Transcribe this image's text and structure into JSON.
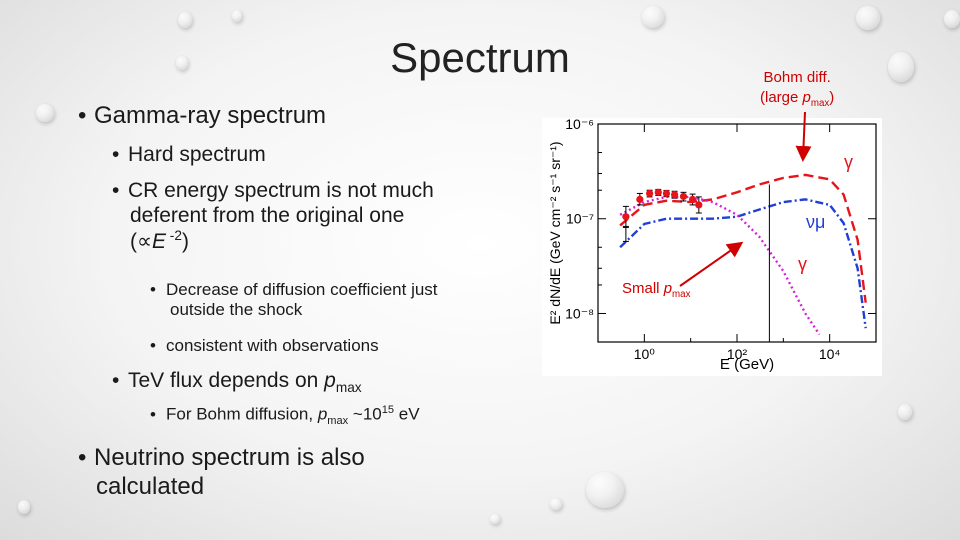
{
  "slide": {
    "title": "Spectrum",
    "bullets": {
      "b1": "Gamma-ray spectrum",
      "b2": "Hard spectrum",
      "b3_line1": "CR energy spectrum is not much",
      "b3_line2": "deferent from the original one",
      "b3_line3_pre": "(∝",
      "b3_line3_E": "E",
      "b3_line3_exp": " -2",
      "b3_line3_post": ")",
      "b4_line1": "Decrease of diffusion coefficient just",
      "b4_line2": "outside the shock",
      "b5": "consistent with observations",
      "b6_pre": "TeV flux depends on ",
      "b6_p": "p",
      "b6_sub": "max",
      "b7_pre": "For Bohm diffusion, ",
      "b7_p": "p",
      "b7_sub": "max",
      "b7_mid": " ~10",
      "b7_exp": "15",
      "b7_post": " eV",
      "b8_line1": "Neutrino spectrum is also",
      "b8_line2": "calculated"
    }
  },
  "annotations": {
    "bohm_line1": "Bohm diff.",
    "bohm_line2_pre": "(large ",
    "bohm_line2_p": "p",
    "bohm_line2_sub": "max",
    "bohm_line2_post": ")",
    "small_pre": "Small ",
    "small_p": "p",
    "small_sub": "max"
  },
  "colors": {
    "red": "#e8141c",
    "blue": "#1f3fd6",
    "magenta": "#d622d6",
    "annotation_red": "#d00000"
  },
  "chart_data": {
    "type": "line",
    "xlabel": "E (GeV)",
    "ylabel": "E² dN/dE (GeV cm⁻² s⁻¹ sr⁻¹)",
    "xscale": "log",
    "yscale": "log",
    "xlim": [
      0.1,
      100000
    ],
    "ylim": [
      5e-09,
      1e-06
    ],
    "x_ticks": [
      "10⁰",
      "10²",
      "10⁴"
    ],
    "y_ticks": [
      "10⁻⁶",
      "10⁻⁷",
      "10⁻⁸"
    ],
    "series_labels": [
      "γ",
      "νμ",
      "γ"
    ],
    "series": [
      {
        "color": "#e8141c",
        "dash": "10,5",
        "x": [
          0.3,
          1,
          3,
          10,
          30,
          100,
          300,
          1000,
          3000,
          10000,
          20000,
          40000,
          60000
        ],
        "y": [
          8.5e-08,
          1.4e-07,
          1.55e-07,
          1.5e-07,
          1.6e-07,
          1.9e-07,
          2.3e-07,
          2.7e-07,
          2.9e-07,
          2.6e-07,
          1.8e-07,
          6e-08,
          1.3e-08
        ]
      },
      {
        "color": "#1f3fd6",
        "dash": "8,3,2,3",
        "x": [
          0.3,
          1,
          3,
          10,
          30,
          100,
          300,
          1000,
          3000,
          10000,
          20000,
          40000,
          60000
        ],
        "y": [
          5e-08,
          8.8e-08,
          1e-07,
          1e-07,
          1e-07,
          1.05e-07,
          1.25e-07,
          1.5e-07,
          1.6e-07,
          1.4e-07,
          9e-08,
          3e-08,
          7e-09
        ]
      },
      {
        "color": "#d622d6",
        "dash": "2,3",
        "x": [
          0.3,
          1,
          3,
          10,
          30,
          100,
          300,
          1000,
          3000,
          6000
        ],
        "y": [
          1.1e-07,
          1.5e-07,
          1.7e-07,
          1.7e-07,
          1.5e-07,
          1.1e-07,
          6.5e-08,
          2.8e-08,
          1e-08,
          6e-09
        ]
      }
    ],
    "points": {
      "x": [
        0.4,
        0.8,
        1.3,
        2,
        3,
        4.5,
        7,
        11,
        15
      ],
      "y": [
        1.05e-07,
        1.6e-07,
        1.85e-07,
        1.9e-07,
        1.85e-07,
        1.8e-07,
        1.72e-07,
        1.6e-07,
        1.4e-07
      ],
      "yerr_low": [
        2.2e-08,
        2e-08,
        1.5e-08,
        1.4e-08,
        1.4e-08,
        1.5e-08,
        1.8e-08,
        2e-08,
        2.5e-08
      ],
      "yerr_high": [
        3e-08,
        2.5e-08,
        1.5e-08,
        1.4e-08,
        1.4e-08,
        1.5e-08,
        1.8e-08,
        2.2e-08,
        3e-08
      ],
      "upper_limit": {
        "x": 0.4,
        "y": 7e-08
      }
    },
    "vertical_marker": {
      "x": 500
    },
    "grid": false,
    "legend": "none"
  }
}
